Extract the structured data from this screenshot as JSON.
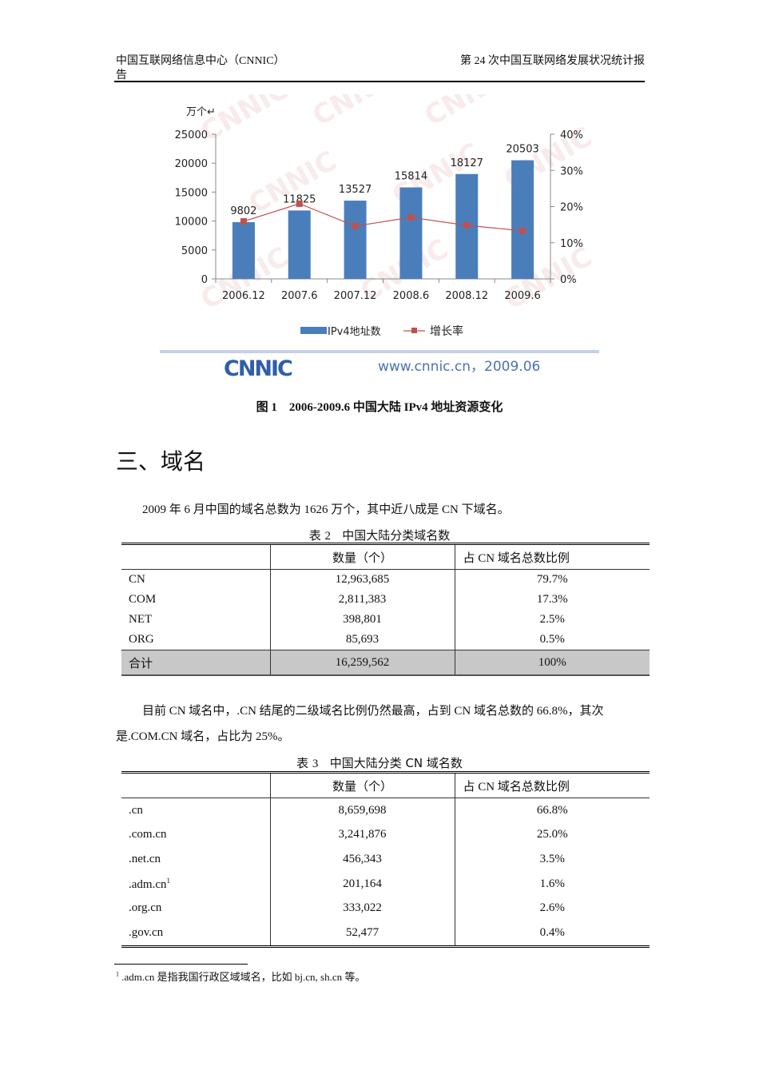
{
  "header": {
    "left": "中国互联网络信息中心（CNNIC）告",
    "left_line1": "中国互联网络信息中心（CNNIC）",
    "left_line2": "告",
    "right": "第 24 次中国互联网络发展状况统计报"
  },
  "chart_data": {
    "type": "bar",
    "title": "",
    "unit_label": "万个↵",
    "categories": [
      "2006.12",
      "2007.6",
      "2007.12",
      "2008.6",
      "2008.12",
      "2009.6"
    ],
    "series": [
      {
        "name": "IPv4地址数",
        "type": "bar",
        "axis": "left",
        "color": "#4a7ebb",
        "values": [
          9802,
          11825,
          13527,
          15814,
          18127,
          20503
        ]
      },
      {
        "name": "增长率",
        "type": "line",
        "axis": "right",
        "color": "#c0504d",
        "values": [
          15.9,
          20.8,
          14.6,
          17.0,
          14.8,
          13.3
        ]
      }
    ],
    "ylim": [
      0,
      25000
    ],
    "yticks": [
      "0",
      "5000",
      "10000",
      "15000",
      "20000",
      "25000"
    ],
    "y2lim": [
      0,
      40
    ],
    "y2ticks": [
      "0%",
      "10%",
      "20%",
      "30%",
      "40%"
    ],
    "legend_position": "bottom",
    "grid": false,
    "footer_logo": "CNNIC",
    "footer_text": "www.cnnic.cn，2009.06"
  },
  "figure_caption": "图 1　2006-2009.6 中国大陆 IPv4 地址资源变化",
  "section_title": "三、域名",
  "paragraph1": "2009 年 6 月中国的域名总数为 1626 万个，其中近八成是 CN 下域名。",
  "table2": {
    "caption_prefix": "表",
    "caption_num": "2",
    "caption_text": "中国大陆分类域名数",
    "headers": [
      "",
      "数量（个）",
      "占 CN 域名总数比例"
    ],
    "rows": [
      [
        "CN",
        "12,963,685",
        "79.7%"
      ],
      [
        "COM",
        "2,811,383",
        "17.3%"
      ],
      [
        "NET",
        "398,801",
        "2.5%"
      ],
      [
        "ORG",
        "85,693",
        "0.5%"
      ]
    ],
    "total": [
      "合计",
      "16,259,562",
      "100%"
    ]
  },
  "paragraph2": "目前 CN 域名中，.CN 结尾的二级域名比例仍然最高，占到 CN 域名总数的 66.8%，其次是.COM.CN 域名，占比为 25%。",
  "table3": {
    "caption_prefix": "表",
    "caption_num": "3",
    "caption_text": "中国大陆分类 CN 域名数",
    "headers": [
      "",
      "数量（个）",
      "占 CN 域名总数比例"
    ],
    "rows": [
      [
        ".cn",
        "8,659,698",
        "66.8%"
      ],
      [
        ".com.cn",
        "3,241,876",
        "25.0%"
      ],
      [
        ".net.cn",
        "456,343",
        "3.5%"
      ],
      [
        ".adm.cn",
        "201,164",
        "1.6%"
      ],
      [
        ".org.cn",
        "333,022",
        "2.6%"
      ],
      [
        ".gov.cn",
        "52,477",
        "0.4%"
      ]
    ],
    "footnote_marker": "1"
  },
  "footnote": {
    "marker": "1",
    "text": ".adm.cn 是指我国行政区域域名，比如 bj.cn, sh.cn 等。"
  }
}
